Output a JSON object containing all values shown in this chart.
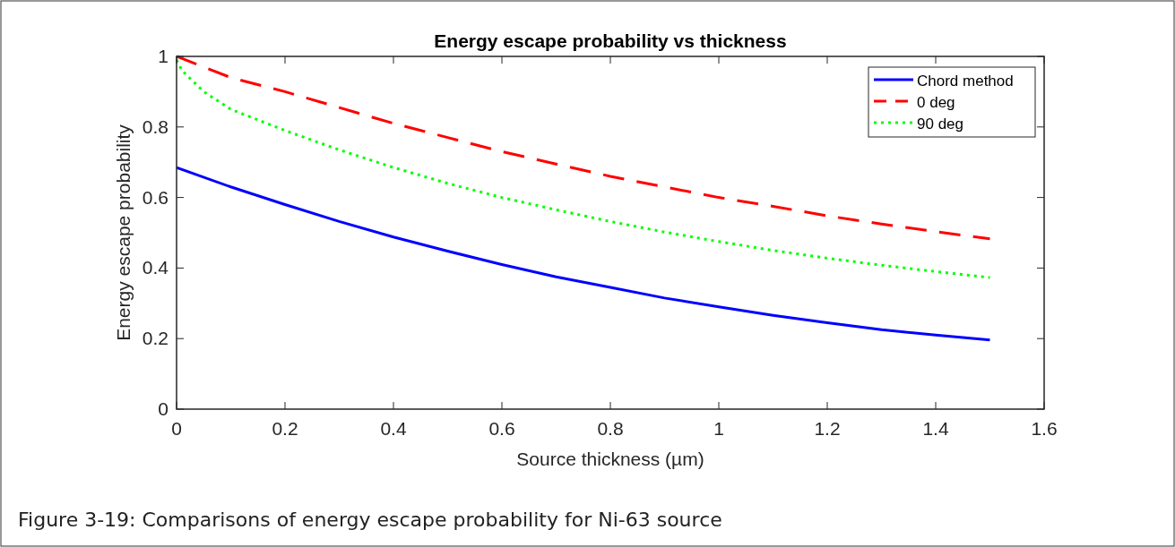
{
  "chart_data": {
    "type": "line",
    "title": "Energy escape probability vs thickness",
    "xlabel": "Source thickness (µm)",
    "ylabel": "Energy escape probability",
    "xlim": [
      0,
      1.6
    ],
    "xticks": [
      0,
      0.2,
      0.4,
      0.6,
      0.8,
      1,
      1.2,
      1.4,
      1.6
    ],
    "ylim": [
      0,
      1
    ],
    "yticks": [
      0,
      0.2,
      0.4,
      0.6,
      0.8,
      1
    ],
    "grid": false,
    "legend": "top right",
    "annotations": [
      "Figure 3-19: Comparisons of energy escape probability for Ni-63 source"
    ],
    "series": [
      {
        "name": "Chord method",
        "color": "#0000ff",
        "line_style": "solid",
        "x": [
          0,
          0.1,
          0.2,
          0.3,
          0.4,
          0.5,
          0.6,
          0.7,
          0.8,
          0.9,
          1,
          1.1,
          1.2,
          1.3,
          1.4,
          1.5
        ],
        "values": [
          0.685,
          0.63,
          0.58,
          0.532,
          0.488,
          0.448,
          0.41,
          0.375,
          0.345,
          0.315,
          0.29,
          0.266,
          0.245,
          0.225,
          0.21,
          0.196
        ]
      },
      {
        "name": "0 deg",
        "color": "#ff0000",
        "line_style": "dashed",
        "x": [
          0,
          0.025,
          0.05,
          0.1,
          0.2,
          0.3,
          0.4,
          0.5,
          0.6,
          0.7,
          0.8,
          0.9,
          1,
          1.1,
          1.2,
          1.3,
          1.4,
          1.5
        ],
        "values": [
          1,
          0.985,
          0.97,
          0.94,
          0.9,
          0.855,
          0.81,
          0.77,
          0.73,
          0.695,
          0.66,
          0.63,
          0.6,
          0.575,
          0.548,
          0.525,
          0.503,
          0.483
        ]
      },
      {
        "name": "90 deg",
        "color": "#00ff00",
        "line_style": "dotted",
        "x": [
          0,
          0.01,
          0.05,
          0.1,
          0.2,
          0.3,
          0.4,
          0.5,
          0.6,
          0.7,
          0.8,
          0.9,
          1,
          1.1,
          1.2,
          1.3,
          1.4,
          1.5
        ],
        "values": [
          0.99,
          0.96,
          0.9,
          0.85,
          0.79,
          0.735,
          0.685,
          0.64,
          0.6,
          0.565,
          0.532,
          0.502,
          0.475,
          0.45,
          0.428,
          0.408,
          0.39,
          0.373
        ]
      }
    ]
  }
}
